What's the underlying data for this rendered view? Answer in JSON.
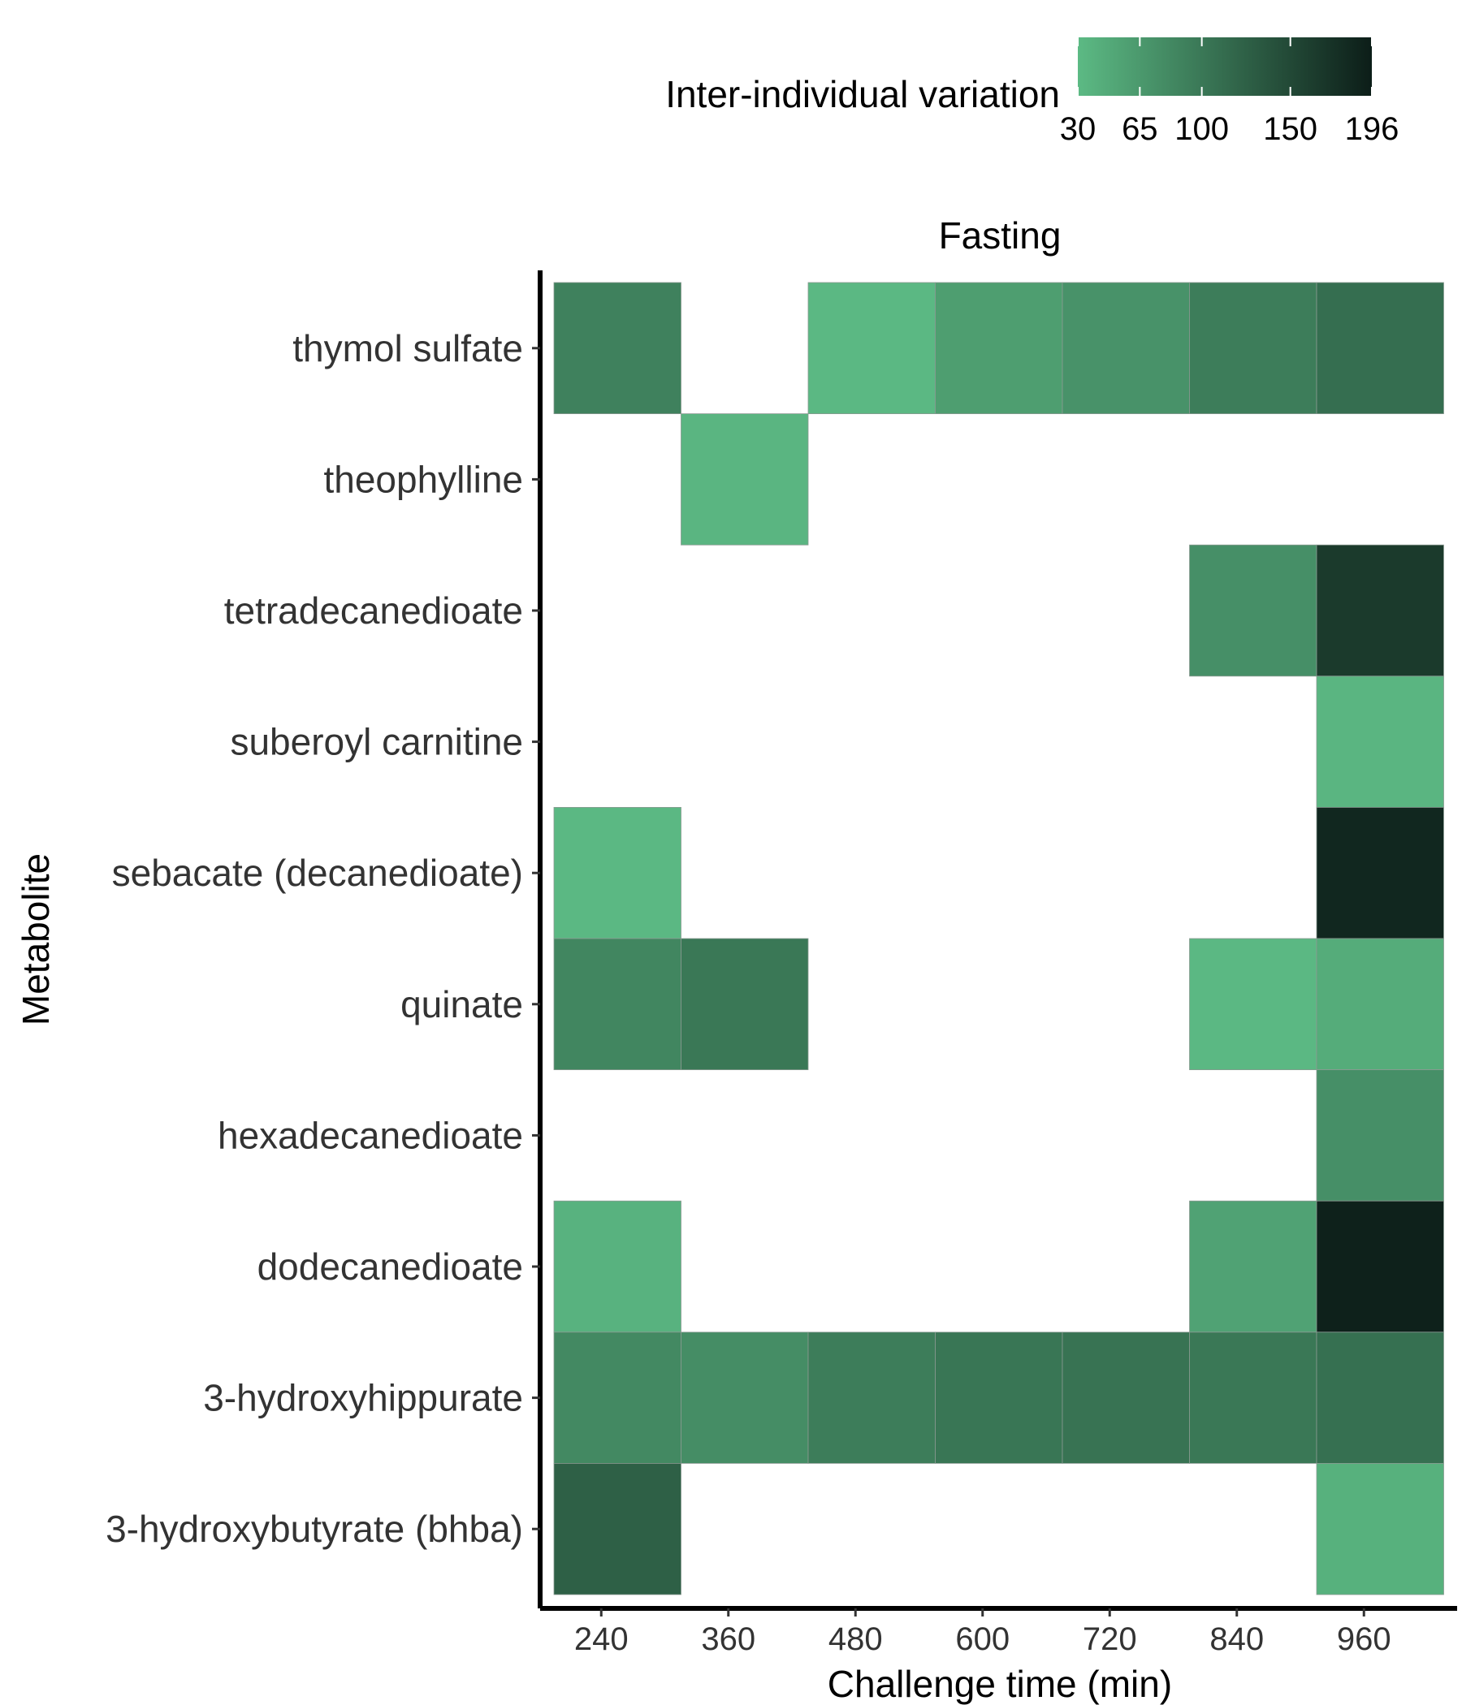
{
  "chart_data": {
    "type": "heatmap",
    "panel_title": "Fasting",
    "xlabel": "Challenge time (min)",
    "ylabel": "Metabolite",
    "x": [
      240,
      360,
      480,
      600,
      720,
      840,
      960
    ],
    "y": [
      "thymol sulfate",
      "theophylline",
      "tetradecanedioate",
      "suberoyl carnitine",
      "sebacate (decanedioate)",
      "quinate",
      "hexadecanedioate",
      "dodecanedioate",
      "3-hydroxyhippurate",
      "3-hydroxybutyrate (bhba)"
    ],
    "values": [
      [
        90,
        null,
        32,
        60,
        72,
        95,
        110
      ],
      [
        null,
        35,
        null,
        null,
        null,
        null,
        null
      ],
      [
        null,
        null,
        null,
        null,
        null,
        75,
        165
      ],
      [
        null,
        null,
        null,
        null,
        null,
        null,
        35
      ],
      [
        32,
        null,
        null,
        null,
        null,
        null,
        185
      ],
      [
        85,
        100,
        null,
        null,
        null,
        32,
        45
      ],
      [
        null,
        null,
        null,
        null,
        null,
        null,
        75
      ],
      [
        38,
        null,
        null,
        null,
        null,
        55,
        192
      ],
      [
        82,
        78,
        95,
        102,
        105,
        100,
        108
      ],
      [
        125,
        null,
        null,
        null,
        null,
        null,
        40
      ]
    ],
    "legend": {
      "title": "Inter-individual variation",
      "ticks": [
        30,
        65,
        100,
        150,
        196
      ],
      "range": [
        30,
        196
      ],
      "colors": [
        "#5cba84",
        "#0c1d18"
      ],
      "placement": "top"
    },
    "grid": false
  }
}
